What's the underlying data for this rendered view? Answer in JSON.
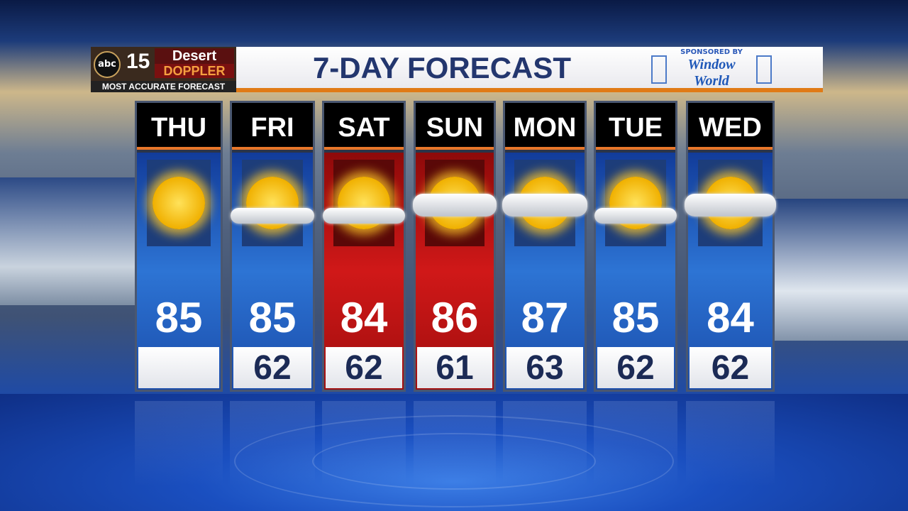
{
  "header": {
    "logo": {
      "network": "abc",
      "channel": "15",
      "brand_line1": "Desert",
      "brand_line2": "DOPPLER",
      "tagline": "MOST ACCURATE FORECAST"
    },
    "title": "7-DAY FORECAST",
    "sponsor": {
      "label": "SPONSORED BY",
      "name_line1": "Window",
      "name_line2": "World"
    }
  },
  "colors": {
    "title": "#23366e",
    "accent": "#e07a16",
    "normal_column": "#2d74d4",
    "hot_column": "#d01818"
  },
  "days": [
    {
      "day": "THU",
      "high": "85",
      "low": "",
      "icon": "sunny",
      "style": "blue"
    },
    {
      "day": "FRI",
      "high": "85",
      "low": "62",
      "icon": "partly-cloudy",
      "style": "blue"
    },
    {
      "day": "SAT",
      "high": "84",
      "low": "62",
      "icon": "partly-cloudy",
      "style": "red"
    },
    {
      "day": "SUN",
      "high": "86",
      "low": "61",
      "icon": "mostly-cloudy",
      "style": "red"
    },
    {
      "day": "MON",
      "high": "87",
      "low": "63",
      "icon": "mostly-cloudy",
      "style": "blue"
    },
    {
      "day": "TUE",
      "high": "85",
      "low": "62",
      "icon": "partly-cloudy",
      "style": "blue"
    },
    {
      "day": "WED",
      "high": "84",
      "low": "62",
      "icon": "mostly-cloudy",
      "style": "blue"
    }
  ]
}
